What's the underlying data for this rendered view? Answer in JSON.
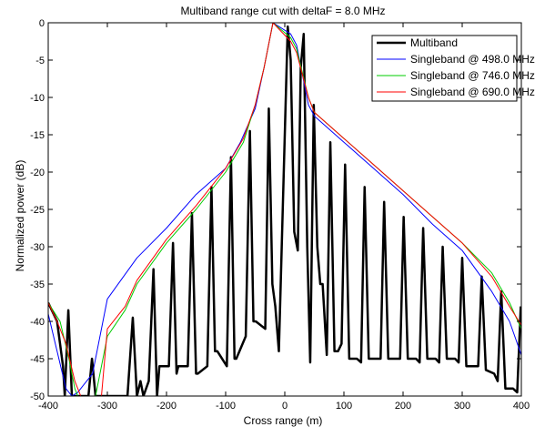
{
  "chart_data": {
    "type": "line",
    "title": "Multiband range cut with deltaF = 8.0 MHz",
    "xlabel": "Cross range (m)",
    "ylabel": "Normalized power (dB)",
    "xlim": [
      -400,
      400
    ],
    "ylim": [
      -50,
      0
    ],
    "xticks": [
      -400,
      -300,
      -200,
      -100,
      0,
      100,
      200,
      300,
      400
    ],
    "yticks": [
      0,
      -5,
      -10,
      -15,
      -20,
      -25,
      -30,
      -35,
      -40,
      -45,
      -50
    ],
    "grid": false,
    "legend_position": "top-right",
    "series": [
      {
        "name": "Multiband",
        "color": "#000000",
        "line_width": 2.5,
        "points": [
          [
            -400,
            -37.5
          ],
          [
            -385,
            -40
          ],
          [
            -375,
            -46
          ],
          [
            -372,
            -50
          ],
          [
            -366,
            -38.5
          ],
          [
            -360,
            -50
          ],
          [
            -332,
            -50
          ],
          [
            -326,
            -45
          ],
          [
            -320,
            -50
          ],
          [
            -266,
            -50
          ],
          [
            -257,
            -39.5
          ],
          [
            -250,
            -50
          ],
          [
            -244,
            -48
          ],
          [
            -239,
            -50
          ],
          [
            -230,
            -48
          ],
          [
            -222,
            -33
          ],
          [
            -216,
            -50
          ],
          [
            -212,
            -46
          ],
          [
            -196,
            -46
          ],
          [
            -189,
            -29.5
          ],
          [
            -183,
            -47
          ],
          [
            -180,
            -46
          ],
          [
            -164,
            -46
          ],
          [
            -157,
            -25.5
          ],
          [
            -150,
            -47
          ],
          [
            -147,
            -47
          ],
          [
            -131,
            -46
          ],
          [
            -124,
            -22
          ],
          [
            -118,
            -44
          ],
          [
            -114,
            -44
          ],
          [
            -98,
            -46
          ],
          [
            -91,
            -18
          ],
          [
            -85,
            -45
          ],
          [
            -82,
            -45
          ],
          [
            -66,
            -42
          ],
          [
            -59,
            -14.5
          ],
          [
            -53,
            -40
          ],
          [
            -49,
            -40
          ],
          [
            -33,
            -41
          ],
          [
            -27,
            -11.5
          ],
          [
            -21,
            -35
          ],
          [
            -16,
            -38
          ],
          [
            -10,
            -44
          ],
          [
            5,
            -0.5
          ],
          [
            10,
            -5
          ],
          [
            16,
            -28
          ],
          [
            22,
            -30.5
          ],
          [
            27,
            -6
          ],
          [
            32,
            -1.5
          ],
          [
            38,
            -30
          ],
          [
            43,
            -45.5
          ],
          [
            49,
            -11
          ],
          [
            55,
            -30
          ],
          [
            60,
            -35
          ],
          [
            64,
            -35
          ],
          [
            71,
            -44.5
          ],
          [
            77,
            -16
          ],
          [
            84,
            -44
          ],
          [
            90,
            -44
          ],
          [
            96,
            -43
          ],
          [
            102,
            -19
          ],
          [
            109,
            -45
          ],
          [
            122,
            -45
          ],
          [
            129,
            -45.5
          ],
          [
            135,
            -22
          ],
          [
            142,
            -45
          ],
          [
            156,
            -45
          ],
          [
            162,
            -45
          ],
          [
            168,
            -24
          ],
          [
            175,
            -45
          ],
          [
            189,
            -45
          ],
          [
            195,
            -45
          ],
          [
            201,
            -26
          ],
          [
            208,
            -45
          ],
          [
            222,
            -45
          ],
          [
            228,
            -45.5
          ],
          [
            234,
            -27.5
          ],
          [
            241,
            -45
          ],
          [
            255,
            -45
          ],
          [
            261,
            -45.5
          ],
          [
            267,
            -30
          ],
          [
            274,
            -45
          ],
          [
            288,
            -45
          ],
          [
            294,
            -45.5
          ],
          [
            300,
            -31.5
          ],
          [
            307,
            -46
          ],
          [
            321,
            -46
          ],
          [
            327,
            -46
          ],
          [
            333,
            -34
          ],
          [
            340,
            -46.5
          ],
          [
            354,
            -47
          ],
          [
            360,
            -48
          ],
          [
            366,
            -36
          ],
          [
            373,
            -49
          ],
          [
            386,
            -49
          ],
          [
            393,
            -49.5
          ],
          [
            399,
            -38
          ]
        ]
      },
      {
        "name": "Singleband @ 498.0 MHz",
        "color": "#0000ff",
        "line_width": 1,
        "points": [
          [
            -400,
            -39
          ],
          [
            -385,
            -44
          ],
          [
            -370,
            -49
          ],
          [
            -360,
            -50
          ],
          [
            -350,
            -49.5
          ],
          [
            -335,
            -48
          ],
          [
            -325,
            -47
          ],
          [
            -300,
            -37
          ],
          [
            -250,
            -31.5
          ],
          [
            -200,
            -27.5
          ],
          [
            -150,
            -23
          ],
          [
            -100,
            -19.5
          ],
          [
            -75,
            -16
          ],
          [
            -50,
            -11.5
          ],
          [
            -35,
            -6
          ],
          [
            -20,
            0
          ],
          [
            10,
            -1.5
          ],
          [
            20,
            -3
          ],
          [
            40,
            -11
          ],
          [
            50,
            -12.5
          ],
          [
            100,
            -16
          ],
          [
            150,
            -19.5
          ],
          [
            200,
            -23
          ],
          [
            250,
            -27
          ],
          [
            300,
            -30.5
          ],
          [
            350,
            -36
          ],
          [
            380,
            -40
          ],
          [
            400,
            -44.5
          ]
        ]
      },
      {
        "name": "Singleband @ 746.0 MHz",
        "color": "#00cc00",
        "line_width": 1,
        "points": [
          [
            -400,
            -37.5
          ],
          [
            -380,
            -40
          ],
          [
            -365,
            -45
          ],
          [
            -355,
            -49
          ],
          [
            -350,
            -50
          ],
          [
            -320,
            -50
          ],
          [
            -300,
            -42
          ],
          [
            -270,
            -38.5
          ],
          [
            -250,
            -35
          ],
          [
            -200,
            -29.5
          ],
          [
            -150,
            -25
          ],
          [
            -100,
            -20
          ],
          [
            -70,
            -16
          ],
          [
            -50,
            -11
          ],
          [
            -35,
            -6
          ],
          [
            -20,
            0
          ],
          [
            10,
            -2
          ],
          [
            20,
            -3.5
          ],
          [
            40,
            -10
          ],
          [
            50,
            -12
          ],
          [
            100,
            -15.5
          ],
          [
            150,
            -19
          ],
          [
            200,
            -22.5
          ],
          [
            250,
            -26
          ],
          [
            300,
            -29.5
          ],
          [
            350,
            -33.5
          ],
          [
            380,
            -37.5
          ],
          [
            400,
            -41
          ]
        ]
      },
      {
        "name": "Singleband @ 690.0 MHz",
        "color": "#ff0000",
        "line_width": 1,
        "points": [
          [
            -400,
            -37.5
          ],
          [
            -385,
            -40
          ],
          [
            -370,
            -43
          ],
          [
            -355,
            -48
          ],
          [
            -345,
            -50
          ],
          [
            -310,
            -50
          ],
          [
            -300,
            -41
          ],
          [
            -270,
            -38
          ],
          [
            -250,
            -34.5
          ],
          [
            -200,
            -29
          ],
          [
            -150,
            -24.5
          ],
          [
            -100,
            -19.5
          ],
          [
            -70,
            -15.5
          ],
          [
            -50,
            -11
          ],
          [
            -35,
            -6
          ],
          [
            -20,
            0
          ],
          [
            10,
            -2.5
          ],
          [
            20,
            -4
          ],
          [
            40,
            -10
          ],
          [
            50,
            -12
          ],
          [
            100,
            -15.5
          ],
          [
            150,
            -19
          ],
          [
            200,
            -22.5
          ],
          [
            250,
            -26
          ],
          [
            300,
            -29.5
          ],
          [
            350,
            -34
          ],
          [
            380,
            -38
          ],
          [
            400,
            -40.5
          ]
        ]
      }
    ]
  }
}
